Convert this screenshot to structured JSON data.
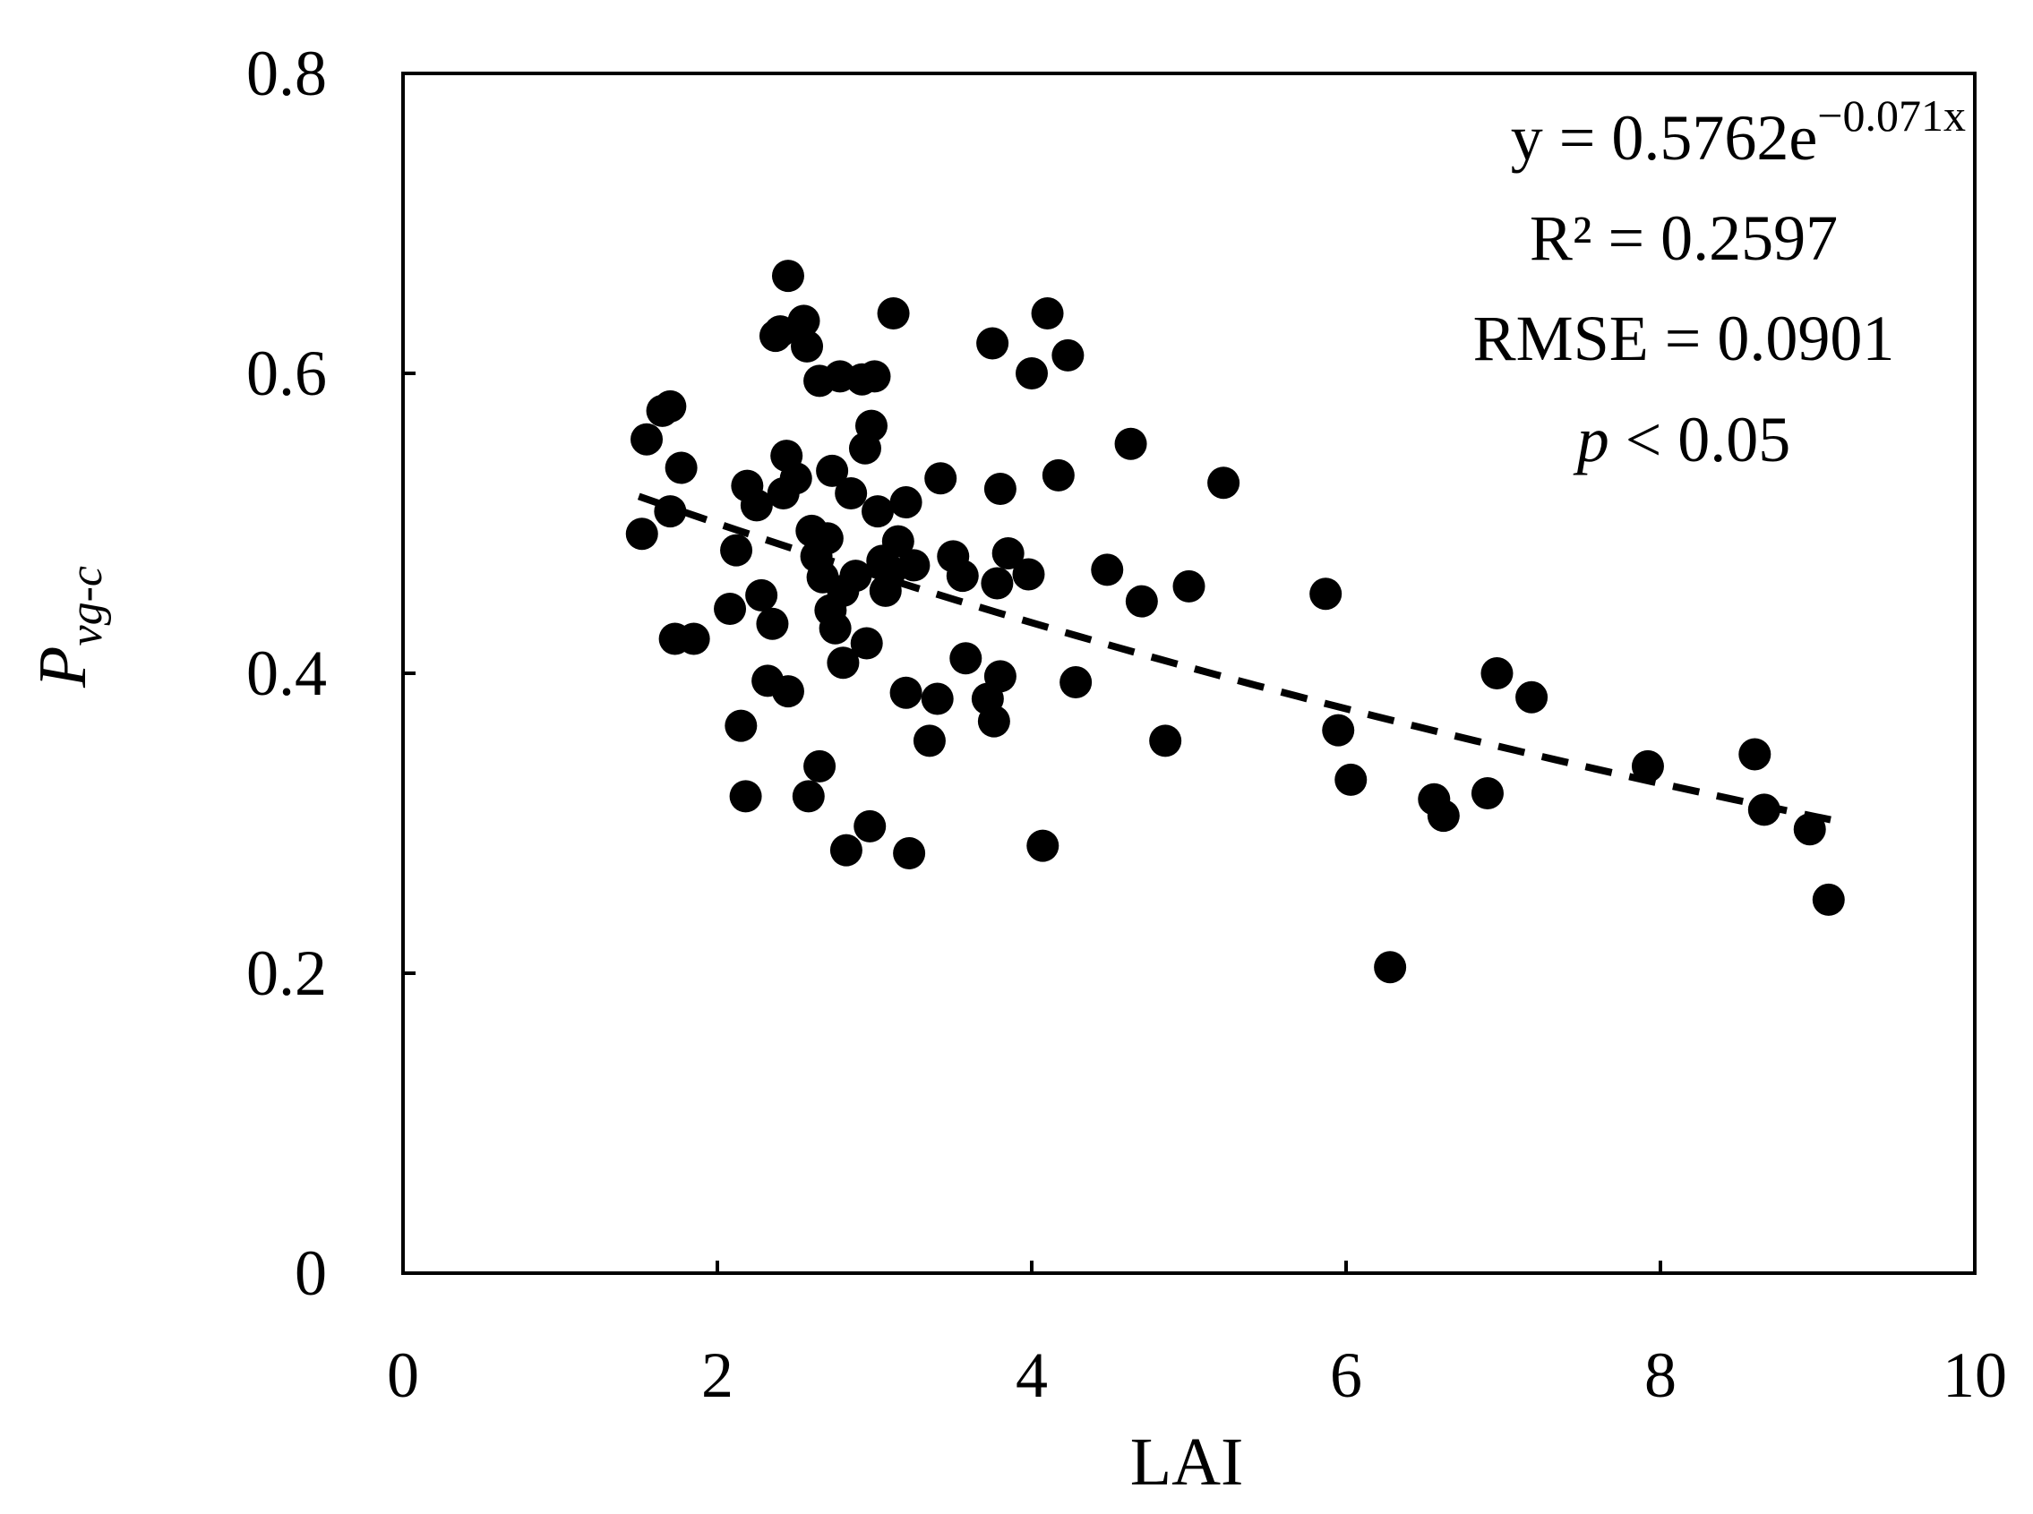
{
  "chart_data": {
    "type": "scatter",
    "title": "",
    "xlabel": "LAI",
    "ylabel": {
      "main": "P",
      "subscript": "vg-c"
    },
    "xlim": [
      0,
      10
    ],
    "ylim": [
      0,
      0.8
    ],
    "x_ticks": [
      0,
      2,
      4,
      6,
      8,
      10
    ],
    "y_ticks": [
      0,
      0.2,
      0.4,
      0.6,
      0.8
    ],
    "x_tick_labels": [
      "0",
      "2",
      "4",
      "6",
      "8",
      "10"
    ],
    "y_tick_labels": [
      "0",
      "0.2",
      "0.4",
      "0.6",
      "0.8"
    ],
    "grid": false,
    "legend": "none",
    "marker_color": "#000000",
    "trendline": {
      "type": "exponential",
      "a": 0.5762,
      "b": -0.071,
      "x_range": [
        1.5,
        9.1
      ],
      "style": "dashed",
      "color": "#000000"
    },
    "annotations": {
      "equation_prefix": "y = 0.5762e",
      "equation_exponent": "−0.071x",
      "r2": "R² = 0.2597",
      "rmse": "RMSE = 0.0901",
      "p_symbol": "p",
      "p_value": " < 0.05"
    },
    "points": [
      [
        1.52,
        0.493
      ],
      [
        1.55,
        0.556
      ],
      [
        1.65,
        0.575
      ],
      [
        1.7,
        0.578
      ],
      [
        1.7,
        0.508
      ],
      [
        1.73,
        0.423
      ],
      [
        1.77,
        0.537
      ],
      [
        1.85,
        0.423
      ],
      [
        2.08,
        0.443
      ],
      [
        2.12,
        0.482
      ],
      [
        2.15,
        0.365
      ],
      [
        2.18,
        0.318
      ],
      [
        2.19,
        0.525
      ],
      [
        2.25,
        0.512
      ],
      [
        2.28,
        0.452
      ],
      [
        2.32,
        0.395
      ],
      [
        2.35,
        0.433
      ],
      [
        2.37,
        0.625
      ],
      [
        2.4,
        0.628
      ],
      [
        2.42,
        0.52
      ],
      [
        2.44,
        0.545
      ],
      [
        2.45,
        0.665
      ],
      [
        2.45,
        0.388
      ],
      [
        2.5,
        0.53
      ],
      [
        2.55,
        0.635
      ],
      [
        2.57,
        0.618
      ],
      [
        2.58,
        0.318
      ],
      [
        2.6,
        0.495
      ],
      [
        2.63,
        0.478
      ],
      [
        2.65,
        0.595
      ],
      [
        2.65,
        0.338
      ],
      [
        2.67,
        0.464
      ],
      [
        2.7,
        0.49
      ],
      [
        2.72,
        0.442
      ],
      [
        2.73,
        0.535
      ],
      [
        2.75,
        0.43
      ],
      [
        2.78,
        0.598
      ],
      [
        2.8,
        0.455
      ],
      [
        2.8,
        0.407
      ],
      [
        2.82,
        0.282
      ],
      [
        2.85,
        0.52
      ],
      [
        2.88,
        0.465
      ],
      [
        2.92,
        0.596
      ],
      [
        2.94,
        0.55
      ],
      [
        2.95,
        0.42
      ],
      [
        2.97,
        0.298
      ],
      [
        2.98,
        0.565
      ],
      [
        3.0,
        0.598
      ],
      [
        3.02,
        0.508
      ],
      [
        3.05,
        0.475
      ],
      [
        3.07,
        0.455
      ],
      [
        3.1,
        0.468
      ],
      [
        3.12,
        0.64
      ],
      [
        3.15,
        0.488
      ],
      [
        3.2,
        0.387
      ],
      [
        3.2,
        0.514
      ],
      [
        3.22,
        0.28
      ],
      [
        3.25,
        0.472
      ],
      [
        3.35,
        0.355
      ],
      [
        3.4,
        0.383
      ],
      [
        3.42,
        0.53
      ],
      [
        3.5,
        0.478
      ],
      [
        3.56,
        0.465
      ],
      [
        3.58,
        0.41
      ],
      [
        3.72,
        0.383
      ],
      [
        3.75,
        0.62
      ],
      [
        3.76,
        0.368
      ],
      [
        3.78,
        0.46
      ],
      [
        3.8,
        0.398
      ],
      [
        3.8,
        0.523
      ],
      [
        3.85,
        0.48
      ],
      [
        3.98,
        0.466
      ],
      [
        4.0,
        0.6
      ],
      [
        4.07,
        0.285
      ],
      [
        4.1,
        0.64
      ],
      [
        4.17,
        0.532
      ],
      [
        4.23,
        0.612
      ],
      [
        4.28,
        0.394
      ],
      [
        4.48,
        0.469
      ],
      [
        4.63,
        0.553
      ],
      [
        4.7,
        0.448
      ],
      [
        4.85,
        0.355
      ],
      [
        5.0,
        0.458
      ],
      [
        5.22,
        0.527
      ],
      [
        5.87,
        0.453
      ],
      [
        5.95,
        0.362
      ],
      [
        6.03,
        0.329
      ],
      [
        6.28,
        0.204
      ],
      [
        6.56,
        0.316
      ],
      [
        6.62,
        0.305
      ],
      [
        6.9,
        0.32
      ],
      [
        6.96,
        0.4
      ],
      [
        7.18,
        0.384
      ],
      [
        7.92,
        0.338
      ],
      [
        8.6,
        0.346
      ],
      [
        8.66,
        0.309
      ],
      [
        8.95,
        0.296
      ],
      [
        9.07,
        0.249
      ]
    ]
  }
}
